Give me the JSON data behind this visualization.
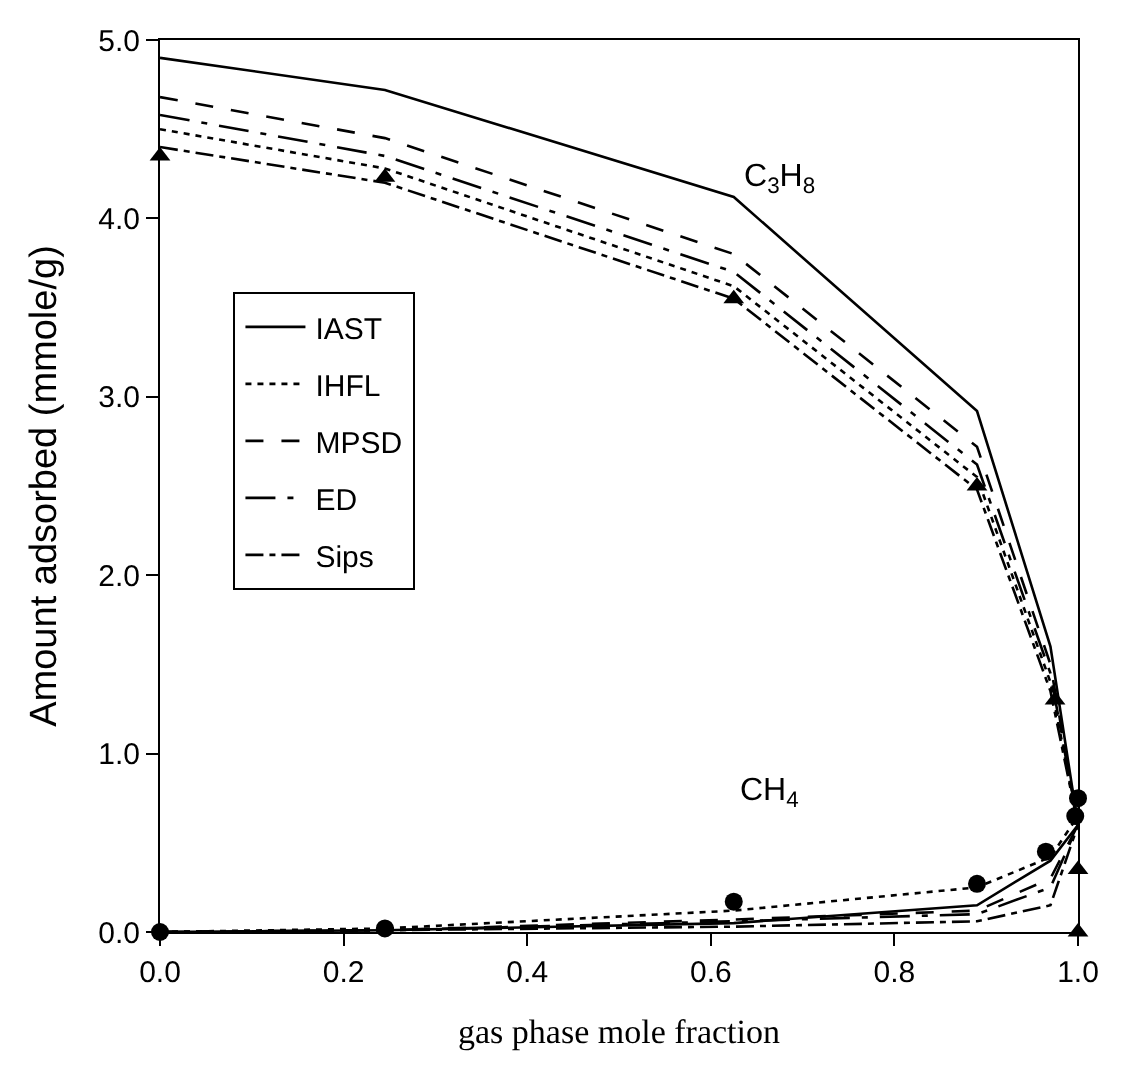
{
  "chart_data": {
    "type": "line",
    "xlabel": "gas phase mole fraction",
    "ylabel": "Amount adsorbed (mmole/g)",
    "xlim": [
      0,
      1.0
    ],
    "ylim": [
      0,
      5.0
    ],
    "xticks": [
      {
        "value": 0,
        "label": "0.0"
      },
      0.2,
      0.4,
      0.6,
      0.8,
      {
        "value": 1,
        "label": "1.0"
      }
    ],
    "yticks": [
      {
        "value": 0,
        "label": "0.0"
      },
      {
        "value": 1,
        "label": "1.0"
      },
      {
        "value": 2,
        "label": "2.0"
      },
      {
        "value": 3,
        "label": "3.0"
      },
      {
        "value": 4,
        "label": "4.0"
      },
      {
        "value": 5,
        "label": "5.0"
      }
    ],
    "legend": "left",
    "marker": "none",
    "annotations": [
      "C$_{3}$H$_{8}$",
      "CH$_{4}$"
    ],
    "series": [
      {
        "name": "IAST",
        "color": "#000000",
        "line_style": "solid",
        "x": [
          0,
          0.245,
          0.625,
          0.89,
          0.97,
          1.0
        ],
        "values": [
          4.9,
          4.72,
          4.12,
          2.92,
          1.6,
          0.6
        ]
      },
      {
        "name": "IHFL",
        "color": "#000000",
        "line_style": "dotted",
        "x": [
          0,
          0.245,
          0.625,
          0.89,
          0.97,
          1.0
        ],
        "values": [
          4.5,
          4.28,
          3.62,
          2.55,
          1.4,
          0.6
        ]
      },
      {
        "name": "MPSD",
        "color": "#000000",
        "line_style": "dashed",
        "x": [
          0,
          0.245,
          0.625,
          0.89,
          0.97,
          1.0
        ],
        "values": [
          4.68,
          4.45,
          3.8,
          2.72,
          1.5,
          0.6
        ]
      },
      {
        "name": "ED",
        "color": "#000000",
        "line_style": "longdashdot",
        "x": [
          0,
          0.245,
          0.625,
          0.89,
          0.97,
          1.0
        ],
        "values": [
          4.58,
          4.35,
          3.7,
          2.62,
          1.45,
          0.6
        ]
      },
      {
        "name": "Sips",
        "color": "#000000",
        "line_style": "dashdot",
        "x": [
          0,
          0.245,
          0.625,
          0.89,
          0.97,
          1.0
        ],
        "values": [
          4.4,
          4.2,
          3.55,
          2.48,
          1.35,
          0.6
        ]
      },
      {
        "color": "#000000",
        "line_style": "solid",
        "x": [
          0,
          0.245,
          0.625,
          0.89,
          0.97,
          1.0
        ],
        "values": [
          0,
          0.01,
          0.05,
          0.15,
          0.4,
          0.6
        ]
      },
      {
        "color": "#000000",
        "line_style": "dotted",
        "x": [
          0,
          0.245,
          0.625,
          0.89,
          0.97,
          1.0
        ],
        "values": [
          0,
          0.02,
          0.12,
          0.25,
          0.42,
          0.65
        ]
      },
      {
        "color": "#000000",
        "line_style": "dashed",
        "x": [
          0,
          0.245,
          0.625,
          0.89,
          0.97,
          1.0
        ],
        "values": [
          0,
          0.01,
          0.07,
          0.12,
          0.3,
          0.6
        ]
      },
      {
        "color": "#000000",
        "line_style": "longdashdot",
        "x": [
          0,
          0.245,
          0.625,
          0.89,
          0.97,
          1.0
        ],
        "values": [
          0,
          0.01,
          0.06,
          0.1,
          0.25,
          0.6
        ]
      },
      {
        "color": "#000000",
        "line_style": "dashdot",
        "x": [
          0,
          0.245,
          0.625,
          0.89,
          0.97,
          1.0
        ],
        "values": [
          0,
          0.01,
          0.03,
          0.06,
          0.15,
          0.6
        ]
      },
      {
        "type": "scatter",
        "color": "#000000",
        "marker": "triangle",
        "x": [
          0,
          0.245,
          0.625,
          0.89,
          0.975,
          1.0,
          1.0
        ],
        "values": [
          4.35,
          4.23,
          3.55,
          2.5,
          1.3,
          0.35,
          0.0
        ]
      },
      {
        "type": "scatter",
        "color": "#000000",
        "marker": "circle",
        "x": [
          0,
          0.245,
          0.625,
          0.89,
          0.965,
          0.997,
          1.0
        ],
        "values": [
          0,
          0.02,
          0.17,
          0.27,
          0.45,
          0.65,
          0.75
        ]
      }
    ]
  }
}
